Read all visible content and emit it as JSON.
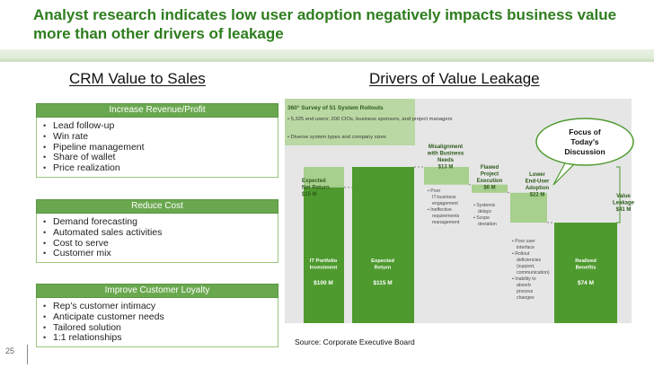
{
  "title": "Analyst research indicates low user adoption negatively impacts business value more than other drivers of leakage",
  "left": {
    "heading": "CRM Value to Sales",
    "boxes": [
      {
        "header": "Increase Revenue/Profit",
        "items": [
          "Lead follow-up",
          "Win rate",
          "Pipeline management",
          "Share of wallet",
          "Price realization"
        ]
      },
      {
        "header": "Reduce Cost",
        "items": [
          "Demand forecasting",
          "Automated sales activities",
          "Cost to serve",
          "Customer mix"
        ]
      },
      {
        "header": "Improve Customer Loyalty",
        "items": [
          "Rep’s customer intimacy",
          "Anticipate customer needs",
          "Tailored solution",
          "1:1 relationships"
        ]
      }
    ]
  },
  "right": {
    "heading": "Drivers of Value Leakage",
    "survey": {
      "title": "360° Survey of 51 System Rollouts",
      "bullets": [
        "5,325 end users; 200 CIOs, business sponsors, and project managers",
        "Diverse system types and company sizes"
      ]
    },
    "callout": "Focus of Today’s Discussion",
    "source": "Source: Corporate Executive Board"
  },
  "page_number": "25",
  "chart_data": {
    "type": "bar",
    "subtype": "waterfall",
    "unit": "$ M",
    "ylim": [
      0,
      150
    ],
    "bars": [
      {
        "name": "IT Portfolio Investment",
        "value": 100,
        "start": 0,
        "value_label": "$100 M",
        "kind": "total"
      },
      {
        "name": "Expected Net Return",
        "value": 15,
        "start": 100,
        "value_label": "$15 M",
        "kind": "increase"
      },
      {
        "name": "Expected Return",
        "value": 115,
        "start": 0,
        "value_label": "$115 M",
        "kind": "total"
      },
      {
        "name": "Misalignment with Business Needs",
        "value": 13,
        "start": 102,
        "value_label": "$13 M",
        "kind": "decrease",
        "notes": [
          "Poor IT-business engagement",
          "Ineffective requirements management"
        ]
      },
      {
        "name": "Flawed Project Execution",
        "value": 6,
        "start": 96,
        "value_label": "$6 M",
        "kind": "decrease",
        "notes": [
          "Systemic delays",
          "Scope deviation"
        ]
      },
      {
        "name": "Lower End-User Adoption",
        "value": 22,
        "start": 74,
        "value_label": "$22 M",
        "kind": "decrease",
        "notes": [
          "Poor user interface",
          "Rollout deficiencies (support, communication)",
          "Inability to absorb process changes"
        ]
      },
      {
        "name": "Value Leakage",
        "value": 41,
        "start": 74,
        "value_label": "$41 M",
        "kind": "decrease"
      },
      {
        "name": "Realized Benefits",
        "value": 74,
        "start": 0,
        "value_label": "$74 M",
        "kind": "total"
      }
    ],
    "labels": {
      "net_return": [
        "Expected",
        "Net Return",
        "$15 M"
      ],
      "misalignment": [
        "Misalignment",
        "with Business",
        "Needs",
        "$13 M"
      ],
      "flawed": [
        "Flawed",
        "Project",
        "Execution",
        "$6 M"
      ],
      "adoption": [
        "Lower",
        "End-User",
        "Adoption",
        "$22 M"
      ],
      "leakage": [
        "Value",
        "Leakage",
        "$41 M"
      ],
      "portfolio": [
        "IT Portfolio",
        "Investment",
        "$100 M"
      ],
      "expected": [
        "Expected",
        "Return",
        "$115 M"
      ],
      "realized": [
        "Realized",
        "Benefits",
        "$74 M"
      ]
    },
    "colors": {
      "total": "#4e9a2e",
      "decrease": "#a7cf8d",
      "panel": "#e6e6e6",
      "survey": "#b9d8a3"
    }
  }
}
